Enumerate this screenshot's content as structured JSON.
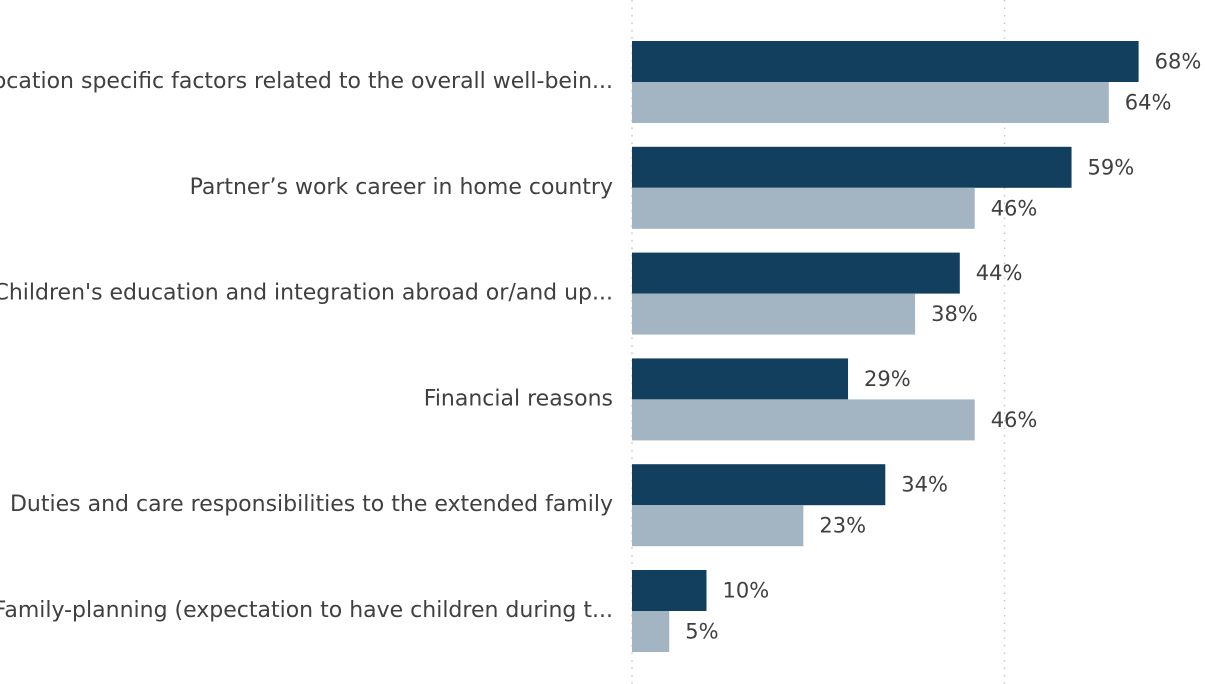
{
  "chart_data": {
    "type": "bar",
    "orientation": "horizontal",
    "categories": [
      "Location specific factors related to the overall well-bein...",
      "Partner’s work career in home country",
      "Children's education and integration abroad or/and up...",
      "Financial reasons",
      "Duties and care responsibilities to the extended family",
      "Family-planning (expectation to have children during t..."
    ],
    "series": [
      {
        "values": [
          68,
          59,
          44,
          29,
          34,
          10
        ],
        "labels": [
          "68%",
          "59%",
          "44%",
          "29%",
          "34%",
          "10%"
        ],
        "color": "#133f5f"
      },
      {
        "values": [
          64,
          46,
          38,
          46,
          23,
          5
        ],
        "labels": [
          "64%",
          "46%",
          "38%",
          "46%",
          "23%",
          "5%"
        ],
        "color": "#a3b4c2"
      }
    ],
    "xlim": [
      0,
      74
    ],
    "gridlines": [
      0,
      50
    ],
    "grid": true,
    "legend": "none"
  }
}
